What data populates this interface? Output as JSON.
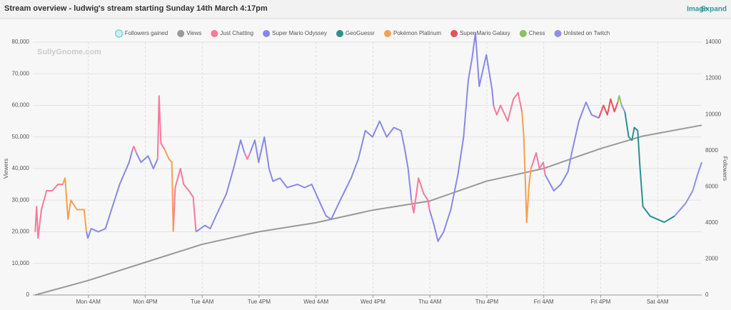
{
  "header": {
    "title": "Stream overview - ludwig's stream starting Sunday 14th March 4:17pm",
    "links": [
      "Image",
      "Expand"
    ]
  },
  "chart_data": {
    "type": "line",
    "watermark": "SullyGnome.com",
    "y_label": "Viewers",
    "y2_label": "Followers",
    "xlim": [
      0,
      141
    ],
    "xticks": [
      {
        "value": 11.7,
        "label": "Mon 4AM"
      },
      {
        "value": 23.7,
        "label": "Mon 4PM"
      },
      {
        "value": 35.7,
        "label": "Tue 4AM"
      },
      {
        "value": 47.7,
        "label": "Tue 4PM"
      },
      {
        "value": 59.7,
        "label": "Wed 4AM"
      },
      {
        "value": 71.7,
        "label": "Wed 4PM"
      },
      {
        "value": 83.7,
        "label": "Thu 4AM"
      },
      {
        "value": 95.7,
        "label": "Thu 4PM"
      },
      {
        "value": 107.7,
        "label": "Fri 4AM"
      },
      {
        "value": 119.7,
        "label": "Fri 4PM"
      },
      {
        "value": 131.7,
        "label": "Sat 4AM"
      }
    ],
    "ylim": [
      0,
      80000
    ],
    "yticks": [
      0,
      {
        "value": 10000,
        "label": "10,000"
      },
      {
        "value": 20000,
        "label": "20,000"
      },
      {
        "value": 30000,
        "label": "30,000"
      },
      {
        "value": 40000,
        "label": "40,000"
      },
      {
        "value": 50000,
        "label": "50,000"
      },
      {
        "value": 60000,
        "label": "60,000"
      },
      {
        "value": 70000,
        "label": "70,000"
      },
      {
        "value": 80000,
        "label": "80,000"
      }
    ],
    "y2lim": [
      0,
      14000
    ],
    "y2ticks": [
      0,
      2000,
      4000,
      6000,
      8000,
      10000,
      12000,
      14000
    ],
    "grid": true,
    "legend": "top",
    "series": [
      {
        "name": "Followers gained",
        "color": "#7fd6d0",
        "visible": false
      },
      {
        "name": "Views",
        "color": "#999999",
        "axis": "y2",
        "x": [
          0.5,
          11.6,
          23.6,
          35.6,
          47.6,
          59.6,
          71.6,
          83.6,
          95.6,
          107.6,
          119.6,
          128.6,
          141
        ],
        "values": [
          0,
          800,
          1800,
          2800,
          3500,
          4000,
          4700,
          5200,
          6300,
          7000,
          8100,
          8800,
          9400
        ]
      },
      {
        "name": "Just Chatting",
        "color": "#f7799b",
        "x": [
          0.5,
          0.8,
          1.1,
          1.8,
          2.9,
          4.1,
          5.3,
          6.3,
          null,
          21.0,
          21.3,
          21.8,
          null,
          26.3,
          26.6,
          27.0,
          27.8,
          null,
          29.6,
          30.0,
          31.1,
          31.8,
          32.9,
          33.8,
          34.4,
          null,
          44.6,
          45.2,
          45.8,
          null,
          79.8,
          80.3,
          81.3,
          82.4,
          83.3,
          83.6,
          null,
          97.1,
          97.8,
          98.6,
          100.1,
          101.3,
          102.3,
          103.1,
          null,
          105.0,
          106.1,
          106.8,
          107.6,
          108.0
        ],
        "values": [
          20000,
          28000,
          18000,
          27000,
          33000,
          33000,
          35000,
          35000,
          null,
          46000,
          47000,
          45000,
          null,
          43000,
          63000,
          48000,
          46000,
          null,
          20000,
          34000,
          40000,
          35000,
          33000,
          31000,
          20000,
          null,
          45000,
          43000,
          45000,
          null,
          30000,
          26000,
          37000,
          32000,
          30000,
          27000,
          null,
          60000,
          57000,
          60000,
          55000,
          62000,
          64000,
          58000,
          null,
          40000,
          45000,
          40000,
          42000,
          38000
        ]
      },
      {
        "name": "Super Mario Odyssey",
        "color": "#8888e8",
        "x": [
          11.3,
          11.6,
          12.3,
          13.8,
          15.3,
          16.8,
          18.3,
          20.3,
          21.0,
          null,
          21.8,
          22.8,
          24.3,
          25.4,
          26.3,
          null,
          34.4,
          36.3,
          37.4,
          38.6,
          40.8,
          42.3,
          43.8,
          44.6,
          null,
          45.8,
          46.8,
          47.6,
          48.8,
          49.8,
          50.6,
          52.1,
          53.6,
          55.8,
          57.3,
          58.8,
          60.3,
          61.8,
          62.9,
          64.8,
          67.1,
          68.6,
          70.1,
          71.6,
          73.1,
          74.6,
          76.1,
          77.6,
          78.3,
          79.1,
          79.8,
          null,
          83.6,
          84.6,
          85.4,
          86.6,
          88.1,
          89.6,
          90.8,
          91.8,
          92.6,
          93.3,
          94.1,
          95.6,
          96.8,
          97.1,
          null,
          108.0,
          109.1,
          109.8,
          111.3,
          112.8,
          113.6,
          115.1,
          116.6,
          117.8,
          119.3
        ],
        "values": [
          20000,
          18000,
          21000,
          20000,
          21000,
          28000,
          35000,
          42000,
          46000,
          null,
          45000,
          42000,
          44000,
          40000,
          43000,
          null,
          20000,
          22000,
          21000,
          25000,
          32000,
          40000,
          49000,
          45000,
          null,
          45000,
          49000,
          42000,
          50000,
          40000,
          36000,
          37000,
          34000,
          35000,
          34000,
          35000,
          30000,
          25000,
          24000,
          30000,
          37000,
          43000,
          52000,
          50000,
          55000,
          50000,
          53000,
          52000,
          47000,
          40000,
          30000,
          null,
          27000,
          22000,
          17000,
          20000,
          27000,
          38000,
          50000,
          68000,
          75000,
          83000,
          66000,
          76000,
          65000,
          60000,
          null,
          38000,
          35000,
          33000,
          35000,
          39000,
          45000,
          55000,
          61000,
          57000,
          56000
        ]
      },
      {
        "name": "GeoGuessr",
        "color": "#2a9090",
        "x": [
          124.8,
          125.6,
          126.3,
          126.8,
          127.5,
          128.0,
          128.6,
          130.1,
          131.6,
          133.1,
          135.3
        ],
        "values": [
          58000,
          50000,
          49000,
          53000,
          52000,
          40000,
          28000,
          25000,
          24000,
          23000,
          25000
        ]
      },
      {
        "name": "Pokémon Platinum",
        "color": "#f5a04d",
        "x": [
          6.3,
          6.8,
          7.4,
          8.0,
          9.3,
          10.8,
          11.3,
          null,
          27.8,
          28.7,
          29.3,
          29.6,
          null,
          103.1,
          103.5,
          104.1,
          104.6,
          105.0
        ],
        "values": [
          35000,
          37000,
          24000,
          30000,
          27000,
          27000,
          20000,
          null,
          46000,
          43000,
          42000,
          20000,
          null,
          58000,
          50000,
          23000,
          35000,
          40000
        ]
      },
      {
        "name": "Super Mario Galaxy",
        "color": "#e8505c",
        "x": [
          119.3,
          120.3,
          121.1,
          121.8,
          122.6,
          123.3
        ],
        "values": [
          56000,
          60000,
          57000,
          62000,
          58000,
          61000
        ]
      },
      {
        "name": "Chess",
        "color": "#8cc060",
        "x": [
          123.3,
          123.6,
          124.1
        ],
        "values": [
          61000,
          63000,
          60000
        ]
      },
      {
        "name": "Unlisted on Twitch",
        "color": "#8f8fea",
        "x": [
          124.1,
          124.8,
          null,
          135.3,
          137.6,
          139.1,
          140.1,
          141.0
        ],
        "values": [
          60000,
          58000,
          null,
          25000,
          29000,
          33000,
          38000,
          42000
        ]
      }
    ]
  }
}
